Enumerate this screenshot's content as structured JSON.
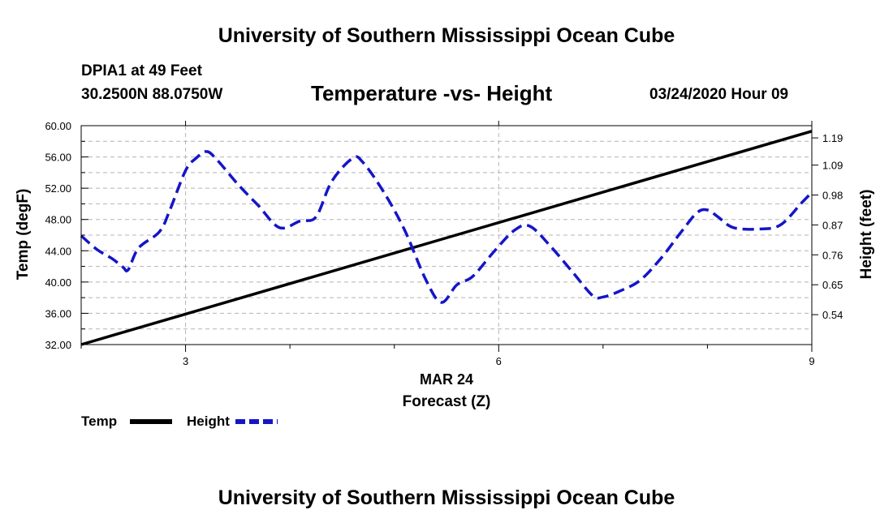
{
  "header": {
    "top_title": "University of Southern Mississippi Ocean Cube",
    "station_name": "DPIA1 at 49 Feet",
    "coords": "30.2500N 88.0750W",
    "timestamp": "03/24/2020 Hour 09"
  },
  "footer": {
    "bottom_title": "University of Southern Mississippi Ocean Cube"
  },
  "chart_data": {
    "type": "line",
    "title": "Temperature -vs- Height",
    "xlabel": "Forecast (Z)",
    "xlabel_date": "MAR 24",
    "ylabel": "Temp (degF)",
    "y2label": "Height (feet)",
    "xlim": [
      2,
      9
    ],
    "ylim": [
      32,
      60
    ],
    "y2lim": [
      0.43,
      1.235
    ],
    "x_ticks": [
      3,
      6,
      9
    ],
    "x_tick_labels": [
      "3",
      "6",
      "9"
    ],
    "y_ticks": [
      32,
      36,
      40,
      44,
      48,
      52,
      56,
      60
    ],
    "y_tick_labels": [
      "32.00",
      "36.00",
      "40.00",
      "44.00",
      "48.00",
      "52.00",
      "56.00",
      "60.00"
    ],
    "y2_ticks": [
      0.54,
      0.65,
      0.76,
      0.87,
      0.98,
      1.09,
      1.19
    ],
    "y2_tick_labels": [
      "0.54",
      "0.65",
      "0.76",
      "0.87",
      "0.98",
      "1.09",
      "1.19"
    ],
    "grid": true,
    "legend": "bottom-left",
    "series": [
      {
        "name": "Temp",
        "axis": "left",
        "color": "#000000",
        "style": "solid",
        "x": [
          2,
          9
        ],
        "values": [
          32.0,
          59.3
        ]
      },
      {
        "name": "Height",
        "axis": "right",
        "color": "#1515c8",
        "style": "dashed",
        "x": [
          2.0,
          2.15,
          2.3,
          2.4,
          2.45,
          2.55,
          2.75,
          2.85,
          3.0,
          3.1,
          3.2,
          3.3,
          3.5,
          3.7,
          3.9,
          4.1,
          4.25,
          4.4,
          4.6,
          4.7,
          4.9,
          5.1,
          5.3,
          5.45,
          5.6,
          5.75,
          5.95,
          6.15,
          6.3,
          6.5,
          6.7,
          6.9,
          7.0,
          7.15,
          7.35,
          7.55,
          7.75,
          7.9,
          8.0,
          8.1,
          8.25,
          8.5,
          8.7,
          8.9,
          9.0
        ],
        "values": [
          0.83,
          0.78,
          0.745,
          0.715,
          0.705,
          0.785,
          0.845,
          0.925,
          1.07,
          1.115,
          1.14,
          1.11,
          1.02,
          0.94,
          0.86,
          0.885,
          0.9,
          1.03,
          1.115,
          1.1,
          0.99,
          0.85,
          0.67,
          0.585,
          0.65,
          0.68,
          0.77,
          0.85,
          0.865,
          0.79,
          0.7,
          0.61,
          0.605,
          0.625,
          0.665,
          0.745,
          0.845,
          0.915,
          0.925,
          0.9,
          0.86,
          0.855,
          0.87,
          0.95,
          0.99
        ]
      }
    ]
  }
}
